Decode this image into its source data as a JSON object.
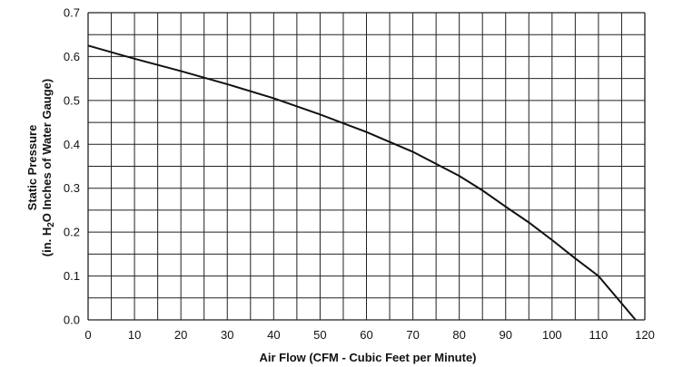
{
  "chart_data": {
    "type": "line",
    "title": "",
    "xlabel": "Air Flow (CFM - Cubic Feet per Minute)",
    "ylabel_line1": "Static Pressure",
    "ylabel_line2_parts": [
      "(in. H",
      "2",
      "O Inches of Water Gauge)"
    ],
    "xlim": [
      0,
      120
    ],
    "ylim": [
      0,
      0.7
    ],
    "x_ticks": [
      "0",
      "10",
      "20",
      "30",
      "40",
      "50",
      "60",
      "70",
      "80",
      "90",
      "100",
      "110",
      "120"
    ],
    "y_ticks": [
      "0.0",
      "0.1",
      "0.2",
      "0.3",
      "0.4",
      "0.5",
      "0.6",
      "0.7"
    ],
    "grid": true,
    "x_minor_step": 5,
    "y_minor_step": 0.05,
    "line_color": "#111111",
    "grid_color": "#222222",
    "series": [
      {
        "x": [
          0,
          10,
          20,
          30,
          40,
          50,
          60,
          70,
          80,
          85,
          90,
          95,
          100,
          105,
          110,
          114,
          118
        ],
        "y": [
          0.625,
          0.595,
          0.567,
          0.537,
          0.505,
          0.468,
          0.428,
          0.383,
          0.328,
          0.295,
          0.258,
          0.222,
          0.182,
          0.14,
          0.1,
          0.05,
          0.0
        ]
      }
    ]
  }
}
